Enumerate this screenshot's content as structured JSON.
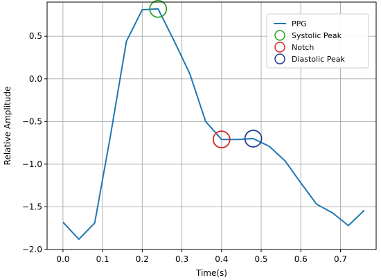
{
  "chart_data": {
    "type": "line",
    "xlabel": "Time(s)",
    "ylabel": "Relative Amplitude",
    "xlim": [
      -0.04,
      0.79
    ],
    "ylim": [
      -2.0,
      0.9
    ],
    "xticks": [
      0.0,
      0.1,
      0.2,
      0.3,
      0.4,
      0.5,
      0.6,
      0.7
    ],
    "xtick_labels": [
      "0.0",
      "0.1",
      "0.2",
      "0.3",
      "0.4",
      "0.5",
      "0.6",
      "0.7"
    ],
    "yticks": [
      -2.0,
      -1.5,
      -1.0,
      -0.5,
      0.0,
      0.5
    ],
    "ytick_labels": [
      "−2.0",
      "−1.5",
      "−1.0",
      "−0.5",
      "0.0",
      "0.5"
    ],
    "grid": true,
    "legend_position": "top-right",
    "series": [
      {
        "name": "PPG",
        "color": "#1f77b4",
        "x": [
          0.0,
          0.04,
          0.08,
          0.12,
          0.16,
          0.2,
          0.24,
          0.28,
          0.32,
          0.36,
          0.4,
          0.44,
          0.48,
          0.52,
          0.56,
          0.6,
          0.64,
          0.68,
          0.72,
          0.76
        ],
        "y": [
          -1.68,
          -1.88,
          -1.69,
          -0.66,
          0.44,
          0.81,
          0.82,
          0.45,
          0.06,
          -0.5,
          -0.71,
          -0.71,
          -0.7,
          -0.79,
          -0.96,
          -1.22,
          -1.47,
          -1.57,
          -1.72,
          -1.54
        ]
      }
    ],
    "markers": [
      {
        "name": "Systolic Peak",
        "color": "#2ca02c",
        "x": 0.24,
        "y": 0.82
      },
      {
        "name": "Notch",
        "color": "#d62728",
        "x": 0.4,
        "y": -0.71
      },
      {
        "name": "Diastolic Peak",
        "color": "#1f3f8f",
        "x": 0.48,
        "y": -0.7
      }
    ]
  }
}
